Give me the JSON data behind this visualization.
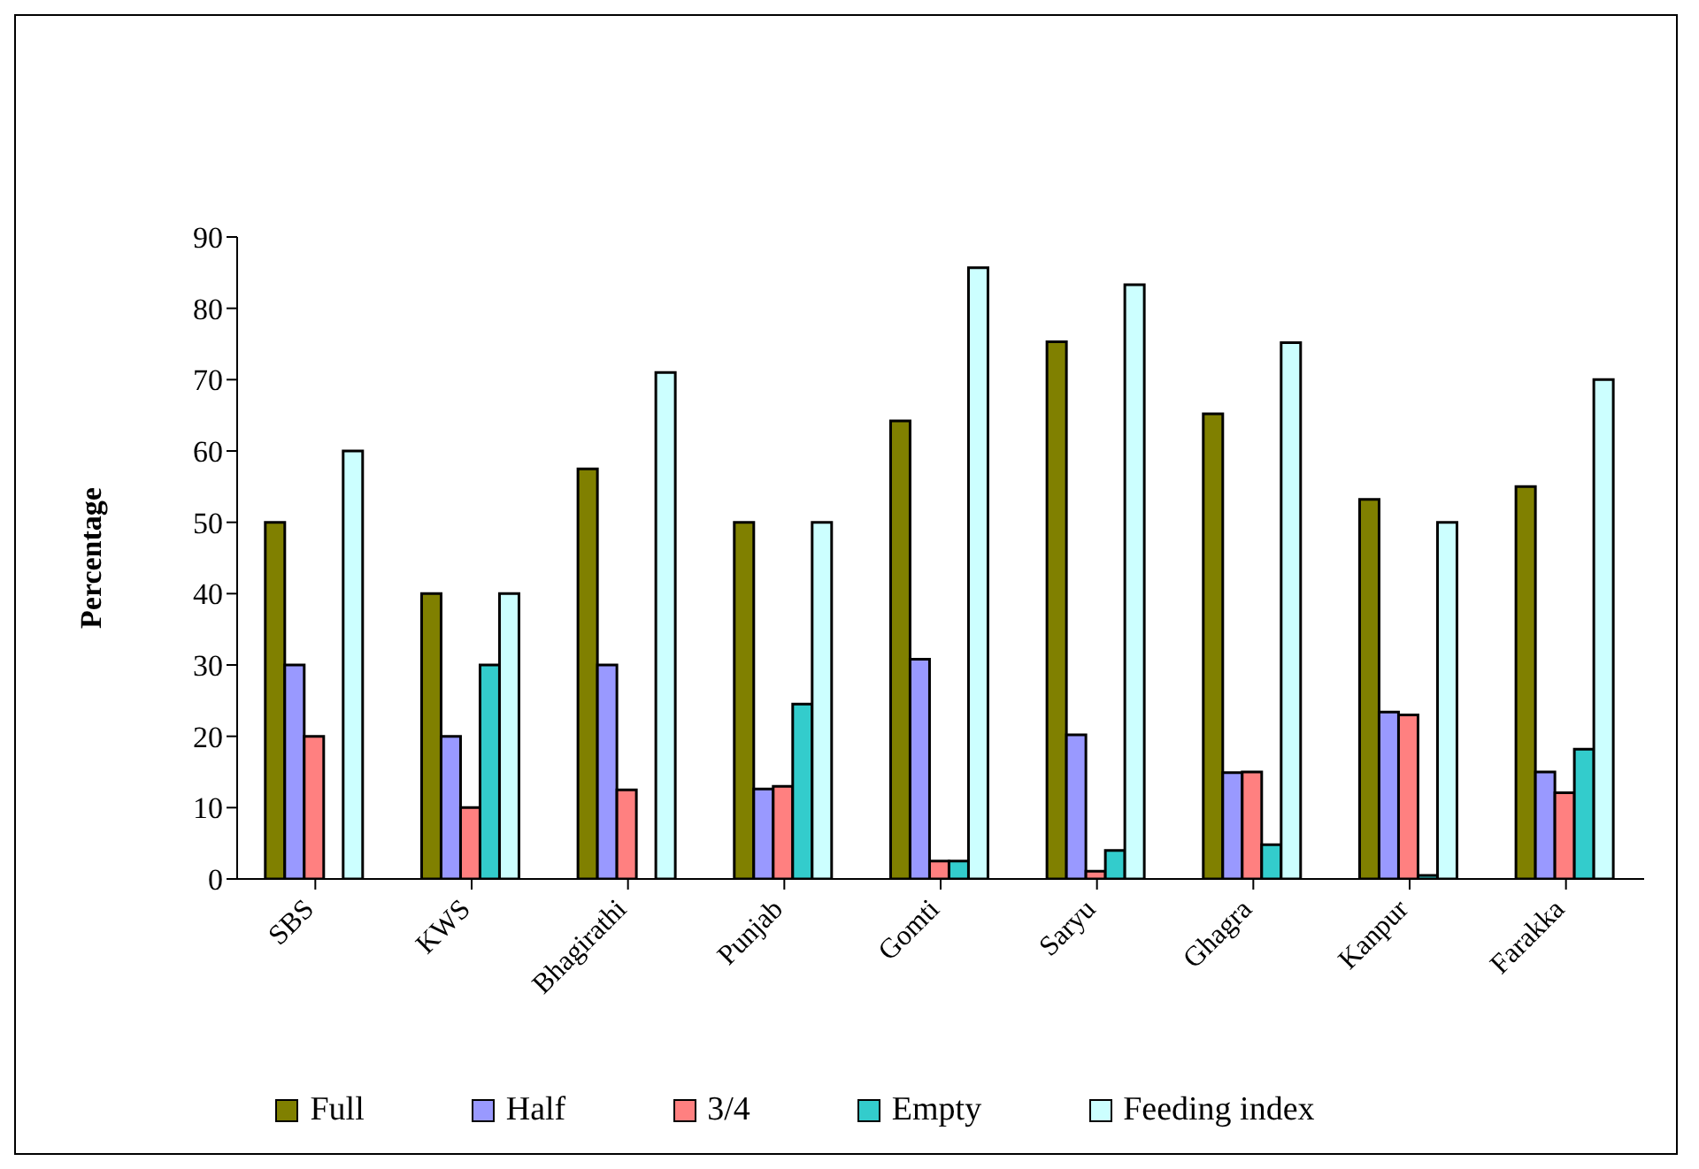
{
  "chart_data": {
    "type": "bar",
    "ylabel": "Percentage",
    "categories": [
      "SBS",
      "KWS",
      "Bhagirathi",
      "Punjab",
      "Gomti",
      "Saryu",
      "Ghagra",
      "Kanpur",
      "Farakka"
    ],
    "series": [
      {
        "name": "Full",
        "color": "#808000",
        "values": [
          50,
          40,
          57.5,
          50,
          64.2,
          75.3,
          65.2,
          53.2,
          55
        ]
      },
      {
        "name": "Half",
        "color": "#9999ff",
        "values": [
          30,
          20,
          30,
          12.6,
          30.8,
          20.2,
          14.9,
          23.4,
          15
        ]
      },
      {
        "name": "3/4",
        "color": "#ff8080",
        "values": [
          20,
          10,
          12.5,
          13,
          2.5,
          1.1,
          15,
          23,
          12.1
        ]
      },
      {
        "name": "Empty",
        "color": "#33cccc",
        "values": [
          0,
          30,
          0,
          24.5,
          2.5,
          4,
          4.8,
          0.5,
          18.2
        ]
      },
      {
        "name": "Feeding index",
        "color": "#ccffff",
        "values": [
          60,
          40,
          71,
          50,
          85.7,
          83.3,
          75.2,
          50,
          70
        ]
      }
    ],
    "ylim": [
      0,
      90
    ],
    "yticks": [
      0,
      10,
      20,
      30,
      40,
      50,
      60,
      70,
      80,
      90
    ],
    "legend": "bottom"
  }
}
